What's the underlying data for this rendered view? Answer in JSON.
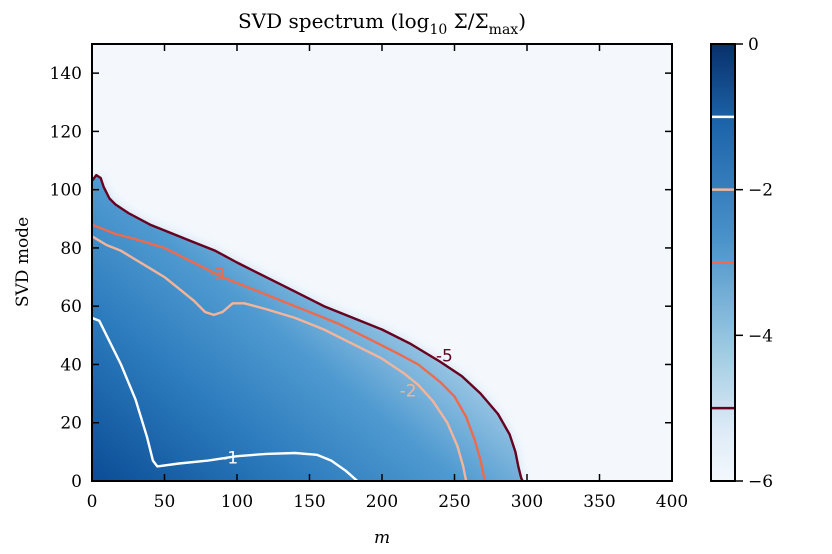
{
  "chart_data": {
    "type": "heatmap",
    "title_main": "SVD spectrum (log",
    "title_sub": "10",
    "title_expr": " Σ/Σ",
    "title_sub2": "max",
    "title_close": ")",
    "xlabel": "m",
    "ylabel": "SVD mode",
    "xlim": [
      0,
      400
    ],
    "ylim": [
      0,
      150
    ],
    "x_ticks": [
      0,
      50,
      100,
      150,
      200,
      250,
      300,
      350,
      400
    ],
    "x_tick_labels": [
      "0",
      "50",
      "100",
      "150",
      "200",
      "250",
      "300",
      "350",
      "400"
    ],
    "y_ticks": [
      0,
      20,
      40,
      60,
      80,
      100,
      120,
      140
    ],
    "y_tick_labels": [
      "0",
      "20",
      "40",
      "60",
      "80",
      "100",
      "120",
      "140"
    ],
    "colorbar": {
      "range": [
        -6,
        0
      ],
      "ticks": [
        0,
        -2,
        -4,
        -6
      ],
      "tick_labels": [
        "0",
        "−2",
        "−4",
        "−6"
      ],
      "colormap": "Blues",
      "low_color": "#f4f8fd",
      "high_color": "#0b3d7e",
      "contour_marks": [
        -1,
        -2,
        -3,
        -5
      ]
    },
    "contours": [
      {
        "level": -1,
        "label": "-1",
        "color": "#ffffff",
        "points": [
          [
            0,
            56
          ],
          [
            5,
            55
          ],
          [
            10,
            50
          ],
          [
            20,
            40
          ],
          [
            30,
            28
          ],
          [
            38,
            15
          ],
          [
            42,
            7
          ],
          [
            45,
            5
          ],
          [
            60,
            6
          ],
          [
            80,
            7
          ],
          [
            100,
            8.5
          ],
          [
            120,
            9.3
          ],
          [
            140,
            9.6
          ],
          [
            155,
            9
          ],
          [
            165,
            7
          ],
          [
            175,
            3.5
          ],
          [
            183,
            0
          ]
        ]
      },
      {
        "level": -2,
        "label": "-2",
        "color": "#f4b49a",
        "points": [
          [
            0,
            84
          ],
          [
            10,
            81
          ],
          [
            20,
            79
          ],
          [
            30,
            76
          ],
          [
            40,
            73
          ],
          [
            50,
            70
          ],
          [
            60,
            66
          ],
          [
            70,
            62
          ],
          [
            78,
            58
          ],
          [
            84,
            57
          ],
          [
            90,
            58
          ],
          [
            97,
            61
          ],
          [
            105,
            61
          ],
          [
            120,
            59
          ],
          [
            140,
            56
          ],
          [
            160,
            52
          ],
          [
            180,
            47
          ],
          [
            200,
            42
          ],
          [
            215,
            37
          ],
          [
            225,
            33
          ],
          [
            235,
            27.5
          ],
          [
            245,
            20
          ],
          [
            252,
            12
          ],
          [
            256,
            5
          ],
          [
            258,
            0
          ]
        ]
      },
      {
        "level": -3,
        "label": "-3",
        "color": "#ee6a4d",
        "points": [
          [
            0,
            88
          ],
          [
            15,
            85
          ],
          [
            30,
            83
          ],
          [
            50,
            80
          ],
          [
            70,
            75
          ],
          [
            90,
            70
          ],
          [
            110,
            66
          ],
          [
            130,
            62
          ],
          [
            150,
            58
          ],
          [
            170,
            54
          ],
          [
            190,
            49
          ],
          [
            210,
            44
          ],
          [
            225,
            40
          ],
          [
            240,
            34
          ],
          [
            250,
            29
          ],
          [
            258,
            22
          ],
          [
            264,
            14
          ],
          [
            268,
            7
          ],
          [
            271,
            0
          ]
        ]
      },
      {
        "level": -5,
        "label": "-5",
        "color": "#67001f",
        "points": [
          [
            0,
            103
          ],
          [
            3,
            105
          ],
          [
            6,
            104
          ],
          [
            8,
            101
          ],
          [
            12,
            97
          ],
          [
            16,
            95
          ],
          [
            25,
            92
          ],
          [
            40,
            88
          ],
          [
            55,
            85
          ],
          [
            70,
            82
          ],
          [
            85,
            79
          ],
          [
            100,
            75
          ],
          [
            120,
            70
          ],
          [
            140,
            65
          ],
          [
            160,
            60
          ],
          [
            180,
            56
          ],
          [
            200,
            52
          ],
          [
            220,
            47
          ],
          [
            240,
            41
          ],
          [
            255,
            36
          ],
          [
            268,
            30
          ],
          [
            280,
            23
          ],
          [
            288,
            16
          ],
          [
            292,
            10
          ],
          [
            294,
            5
          ],
          [
            296,
            1
          ],
          [
            297,
            0
          ]
        ]
      }
    ],
    "contour_labels": [
      {
        "text": "-1",
        "x": 95,
        "y": 8,
        "color": "#ffffff"
      },
      {
        "text": "-2",
        "x": 218,
        "y": 31,
        "color": "#f4b49a"
      },
      {
        "text": "-3",
        "x": 86,
        "y": 71,
        "color": "#ee6a4d"
      },
      {
        "text": "-5",
        "x": 243,
        "y": 43,
        "color": "#67001f"
      }
    ]
  }
}
